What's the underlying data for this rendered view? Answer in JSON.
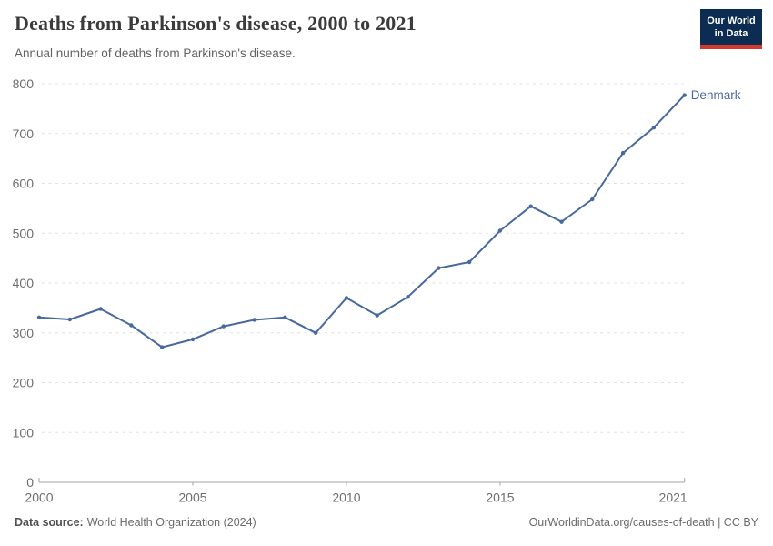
{
  "header": {
    "title": "Deaths from Parkinson's disease, 2000 to 2021",
    "subtitle": "Annual number of deaths from Parkinson's disease.",
    "logo": {
      "line1": "Our World",
      "line2": "in Data"
    }
  },
  "chart_data": {
    "type": "line",
    "title": "Deaths from Parkinson's disease, 2000 to 2021",
    "xlabel": "",
    "ylabel": "",
    "x": [
      2000,
      2001,
      2002,
      2003,
      2004,
      2005,
      2006,
      2007,
      2008,
      2009,
      2010,
      2011,
      2012,
      2013,
      2014,
      2015,
      2016,
      2017,
      2018,
      2019,
      2020,
      2021
    ],
    "series": [
      {
        "name": "Denmark",
        "color": "#4868a0",
        "values": [
          331,
          327,
          348,
          315,
          271,
          287,
          313,
          326,
          331,
          300,
          370,
          335,
          372,
          430,
          442,
          505,
          554,
          523,
          568,
          661,
          712,
          777
        ]
      }
    ],
    "end_label": "Denmark",
    "xticks": [
      2000,
      2005,
      2010,
      2015,
      2021
    ],
    "yticks": [
      0,
      100,
      200,
      300,
      400,
      500,
      600,
      700,
      800
    ],
    "xlim": [
      2000,
      2021
    ],
    "ylim": [
      0,
      800
    ],
    "grid": "horizontal-dashed",
    "legend_position": "end-of-line"
  },
  "footer": {
    "source_label": "Data source:",
    "source_text": "World Health Organization (2024)",
    "credit": "OurWorldinData.org/causes-of-death | CC BY"
  },
  "colors": {
    "series": "#4868a0",
    "grid": "#e0e0e0",
    "axis": "#a5a5a5",
    "tick_label": "#6e6e6e",
    "title": "#3b3b3b",
    "subtitle": "#616161",
    "logo_bg": "#0d2c51",
    "logo_red": "#d13b2e"
  }
}
